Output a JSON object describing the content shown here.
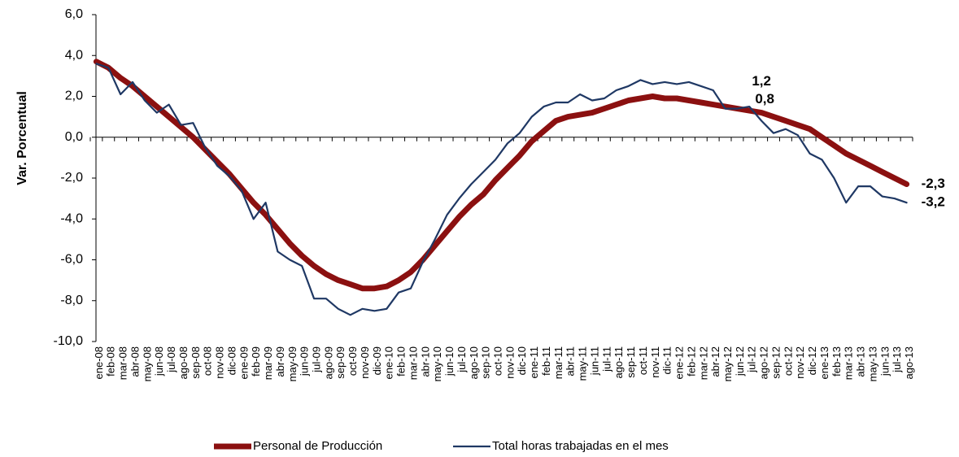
{
  "chart_data": {
    "type": "line",
    "y_label": "Var. Porcentual",
    "categories": [
      "ene-08",
      "feb-08",
      "mar-08",
      "abr-08",
      "may-08",
      "jun-08",
      "jul-08",
      "ago-08",
      "sep-08",
      "oct-08",
      "nov-08",
      "dic-08",
      "ene-09",
      "feb-09",
      "mar-09",
      "abr-09",
      "may-09",
      "jun-09",
      "jul-09",
      "ago-09",
      "sep-09",
      "oct-09",
      "nov-09",
      "dic-09",
      "ene-10",
      "feb-10",
      "mar-10",
      "abr-10",
      "may-10",
      "jun-10",
      "jul-10",
      "ago-10",
      "sep-10",
      "oct-10",
      "nov-10",
      "dic-10",
      "ene-11",
      "feb-11",
      "mar-11",
      "abr-11",
      "may-11",
      "jun-11",
      "jul-11",
      "ago-11",
      "sep-11",
      "oct-11",
      "nov-11",
      "dic-11",
      "ene-12",
      "feb-12",
      "mar-12",
      "abr-12",
      "may-12",
      "jun-12",
      "jul-12",
      "ago-12",
      "sep-12",
      "oct-12",
      "nov-12",
      "dic-12",
      "ene-13",
      "feb-13",
      "mar-13",
      "abr-13",
      "may-13",
      "jun-13",
      "jul-13",
      "ago-13"
    ],
    "series": [
      {
        "name": "Personal de Producción",
        "color": "#8b1010",
        "label_color": "#c0301e",
        "width": 7,
        "values": [
          3.7,
          3.4,
          2.9,
          2.5,
          2.0,
          1.5,
          1.0,
          0.5,
          0.0,
          -0.6,
          -1.2,
          -1.8,
          -2.5,
          -3.2,
          -3.8,
          -4.5,
          -5.2,
          -5.8,
          -6.3,
          -6.7,
          -7.0,
          -7.2,
          -7.4,
          -7.4,
          -7.3,
          -7.0,
          -6.6,
          -6.0,
          -5.3,
          -4.6,
          -3.9,
          -3.3,
          -2.8,
          -2.1,
          -1.5,
          -0.9,
          -0.2,
          0.3,
          0.8,
          1.0,
          1.1,
          1.2,
          1.4,
          1.6,
          1.8,
          1.9,
          2.0,
          1.9,
          1.9,
          1.8,
          1.7,
          1.6,
          1.5,
          1.4,
          1.3,
          1.2,
          1.0,
          0.8,
          0.6,
          0.4,
          0.0,
          -0.4,
          -0.8,
          -1.1,
          -1.4,
          -1.7,
          -2.0,
          -2.3
        ],
        "value_labels": [
          null,
          null,
          null,
          null,
          null,
          null,
          null,
          null,
          null,
          null,
          null,
          null,
          null,
          null,
          null,
          null,
          null,
          null,
          null,
          null,
          null,
          null,
          null,
          null,
          null,
          null,
          null,
          null,
          null,
          null,
          null,
          null,
          null,
          null,
          null,
          null,
          null,
          null,
          null,
          null,
          null,
          null,
          null,
          null,
          null,
          null,
          null,
          null,
          null,
          null,
          null,
          null,
          null,
          null,
          null,
          "1,2",
          null,
          null,
          null,
          null,
          null,
          null,
          null,
          null,
          null,
          null,
          null,
          "-2,3"
        ]
      },
      {
        "name": "Total horas trabajadas en el mes",
        "color": "#1f3864",
        "label_color": "#1f3864",
        "width": 2.2,
        "values": [
          3.6,
          3.4,
          2.1,
          2.7,
          1.8,
          1.2,
          1.6,
          0.6,
          0.7,
          -0.5,
          -1.4,
          -1.9,
          -2.6,
          -4.0,
          -3.2,
          -5.6,
          -6.0,
          -6.3,
          -7.9,
          -7.9,
          -8.4,
          -8.7,
          -8.4,
          -8.5,
          -8.4,
          -7.6,
          -7.4,
          -6.1,
          -5.0,
          -3.8,
          -3.0,
          -2.3,
          -1.7,
          -1.1,
          -0.3,
          0.2,
          1.0,
          1.5,
          1.7,
          1.7,
          2.1,
          1.8,
          1.9,
          2.3,
          2.5,
          2.8,
          2.6,
          2.7,
          2.6,
          2.7,
          2.5,
          2.3,
          1.4,
          1.4,
          1.5,
          0.8,
          0.2,
          0.4,
          0.1,
          -0.8,
          -1.1,
          -2.0,
          -3.2,
          -2.4,
          -2.4,
          -2.9,
          -3.0,
          -3.2
        ],
        "value_labels": [
          null,
          null,
          null,
          null,
          null,
          null,
          null,
          null,
          null,
          null,
          null,
          null,
          null,
          null,
          null,
          null,
          null,
          null,
          null,
          null,
          null,
          null,
          null,
          null,
          null,
          null,
          null,
          null,
          null,
          null,
          null,
          null,
          null,
          null,
          null,
          null,
          null,
          null,
          null,
          null,
          null,
          null,
          null,
          null,
          null,
          null,
          null,
          null,
          null,
          null,
          null,
          null,
          null,
          null,
          null,
          "0,8",
          null,
          null,
          null,
          null,
          null,
          null,
          null,
          null,
          null,
          null,
          null,
          "-3,2"
        ]
      }
    ],
    "ylim": [
      -10,
      6
    ],
    "yticks": [
      {
        "value": -10,
        "label": "-10,0"
      },
      {
        "value": -8,
        "label": "-8,0"
      },
      {
        "value": -6,
        "label": "-6,0"
      },
      {
        "value": -4,
        "label": "-4,0"
      },
      {
        "value": -2,
        "label": "-2,0"
      },
      {
        "value": 0,
        "label": "0,0"
      },
      {
        "value": 2,
        "label": "2,0"
      },
      {
        "value": 4,
        "label": "4,0"
      },
      {
        "value": 6,
        "label": "6,0"
      }
    ],
    "grid": false
  }
}
